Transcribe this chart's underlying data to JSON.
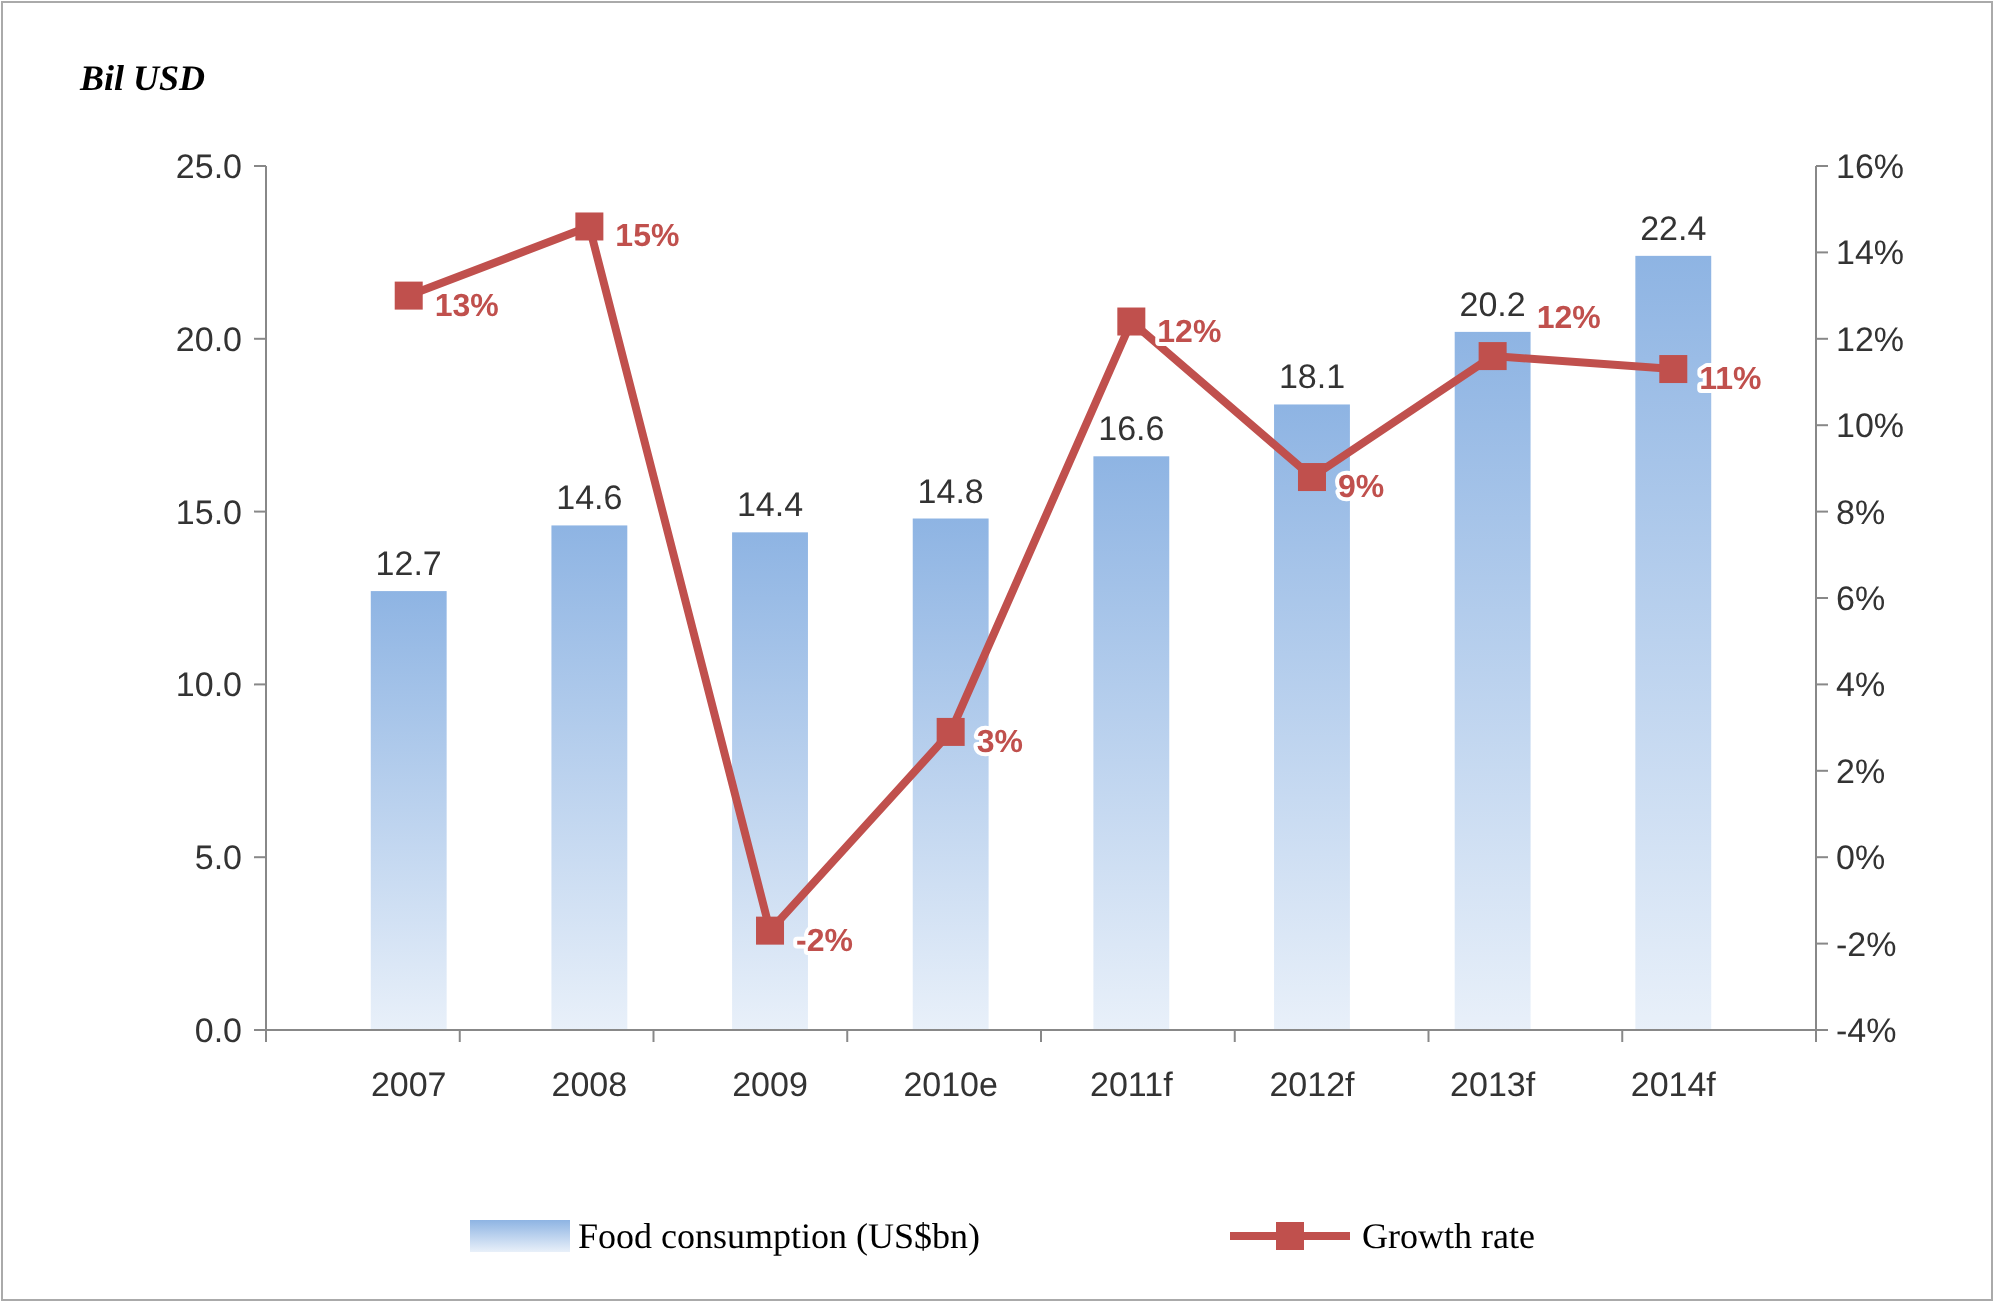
{
  "chart_data": {
    "type": "bar",
    "ylabel": "Bil USD",
    "categories": [
      "2007",
      "2008",
      "2009",
      "2010e",
      "2011f",
      "2012f",
      "2013f",
      "2014f"
    ],
    "series": [
      {
        "name": "Food consumption (US$bn)",
        "color": "#8eb4e3",
        "values": [
          12.7,
          14.6,
          14.4,
          14.8,
          16.6,
          18.1,
          20.2,
          22.4
        ],
        "value_labels": [
          "12.7",
          "14.6",
          "14.4",
          "14.8",
          "16.6",
          "18.1",
          "20.2",
          "22.4"
        ]
      },
      {
        "name": "Growth rate",
        "type": "line",
        "axis": "y2",
        "color": "#c0504d",
        "values": [
          13.0,
          14.6,
          -1.7,
          2.9,
          12.4,
          8.8,
          11.6,
          11.3
        ],
        "value_labels": [
          "13%",
          "15%",
          "-2%",
          "3%",
          "12%",
          "9%",
          "12%",
          "11%"
        ]
      }
    ],
    "ylim": [
      0,
      25
    ],
    "yticks": [
      {
        "value": 0,
        "label": "0.0"
      },
      {
        "value": 5,
        "label": "5.0"
      },
      {
        "value": 10,
        "label": "10.0"
      },
      {
        "value": 15,
        "label": "15.0"
      },
      {
        "value": 20,
        "label": "20.0"
      },
      {
        "value": 25,
        "label": "25.0"
      }
    ],
    "y2lim": [
      -4,
      16
    ],
    "y2ticks": [
      {
        "value": -4,
        "label": "-4%"
      },
      {
        "value": -2,
        "label": "-2%"
      },
      {
        "value": 0,
        "label": "0%"
      },
      {
        "value": 2,
        "label": "2%"
      },
      {
        "value": 4,
        "label": "4%"
      },
      {
        "value": 6,
        "label": "6%"
      },
      {
        "value": 8,
        "label": "8%"
      },
      {
        "value": 10,
        "label": "10%"
      },
      {
        "value": 12,
        "label": "12%"
      },
      {
        "value": 14,
        "label": "14%"
      },
      {
        "value": 16,
        "label": "16%"
      }
    ],
    "grid": false,
    "legend": "bottom",
    "marker": "square",
    "line_style": "solid"
  }
}
